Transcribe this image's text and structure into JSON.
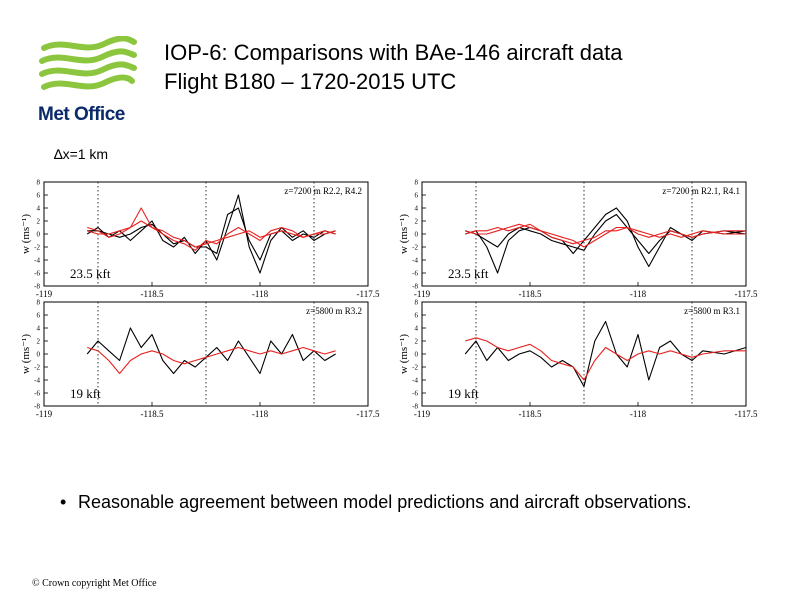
{
  "logo": {
    "text": "Met Office",
    "colors": {
      "green": "#8cc63f",
      "navy": "#0b2a6b"
    }
  },
  "header": {
    "title_line1": "IOP-6: Comparisons with BAe-146 aircraft data",
    "title_line2": "Flight B180 – 1720-2015 UTC"
  },
  "resolution_label": "∆x=1 km",
  "chart_data": [
    {
      "type": "line",
      "panel": "top-left",
      "annotation": "z=7200 m R2.2, R4.2",
      "level_label": "23.5 kft",
      "ylabel": "w (ms⁻¹)",
      "xlim": [
        -119,
        -117.5
      ],
      "ylim": [
        -8,
        8
      ],
      "xticks": [
        -119,
        -118.5,
        -118,
        -117.5
      ],
      "yticks": [
        -8,
        -6,
        -4,
        -2,
        0,
        2,
        4,
        6,
        8
      ],
      "dotted_verticals": [
        -118.75,
        -118.25,
        -117.75
      ],
      "series": [
        {
          "color": "#000000",
          "x": [
            -118.8,
            -118.75,
            -118.7,
            -118.65,
            -118.6,
            -118.55,
            -118.5,
            -118.45,
            -118.4,
            -118.35,
            -118.3,
            -118.25,
            -118.2,
            -118.15,
            -118.1,
            -118.05,
            -118.0,
            -117.95,
            -117.9,
            -117.85,
            -117.8,
            -117.75,
            -117.7,
            -117.65
          ],
          "y": [
            0,
            1,
            -0.5,
            0.5,
            -1,
            0.5,
            2,
            -1,
            -2,
            -0.5,
            -3,
            -1,
            -4,
            1,
            6,
            -2,
            -6,
            -1,
            1,
            -0.5,
            0.5,
            -1,
            0,
            0.5
          ]
        },
        {
          "color": "#000000",
          "x": [
            -118.8,
            -118.75,
            -118.7,
            -118.65,
            -118.6,
            -118.55,
            -118.5,
            -118.45,
            -118.4,
            -118.35,
            -118.3,
            -118.25,
            -118.2,
            -118.15,
            -118.1,
            -118.05,
            -118.0,
            -117.95,
            -117.9,
            -117.85,
            -117.8,
            -117.75,
            -117.7,
            -117.65
          ],
          "y": [
            0.5,
            0.5,
            0,
            -0.5,
            0,
            1,
            1.5,
            0,
            -1.5,
            -1,
            -2,
            -2,
            -3,
            3,
            4,
            -1,
            -4,
            0,
            0.5,
            -1,
            0,
            -0.5,
            0.5,
            0
          ]
        },
        {
          "color": "#e8211f",
          "x": [
            -118.8,
            -118.75,
            -118.7,
            -118.65,
            -118.6,
            -118.55,
            -118.5,
            -118.45,
            -118.4,
            -118.35,
            -118.3,
            -118.25,
            -118.2,
            -118.15,
            -118.1,
            -118.05,
            -118.0,
            -117.95,
            -117.9,
            -117.85,
            -117.8,
            -117.75,
            -117.7,
            -117.65
          ],
          "y": [
            1,
            0.5,
            -0.5,
            0,
            1,
            4,
            1,
            0,
            -1,
            -1.5,
            -2.5,
            -1,
            -1.5,
            0,
            1,
            0,
            -1,
            0.5,
            1,
            0.5,
            -0.5,
            0,
            0,
            0.5
          ]
        },
        {
          "color": "#e8211f",
          "x": [
            -118.8,
            -118.75,
            -118.7,
            -118.65,
            -118.6,
            -118.55,
            -118.5,
            -118.45,
            -118.4,
            -118.35,
            -118.3,
            -118.25,
            -118.2,
            -118.15,
            -118.1,
            -118.05,
            -118.0,
            -117.95,
            -117.9,
            -117.85,
            -117.8,
            -117.75,
            -117.7,
            -117.65
          ],
          "y": [
            0.5,
            0,
            0,
            0.5,
            1,
            2,
            1,
            0.5,
            -0.5,
            -1,
            -2,
            -1.5,
            -1,
            -0.5,
            0,
            0.5,
            -0.5,
            0,
            0.5,
            0,
            -0.5,
            0,
            0.5,
            0
          ]
        }
      ]
    },
    {
      "type": "line",
      "panel": "top-right",
      "annotation": "z=7200 m R2.1, R4.1",
      "level_label": "23.5 kft",
      "ylabel": "w (ms⁻¹)",
      "xlim": [
        -119,
        -117.5
      ],
      "ylim": [
        -8,
        8
      ],
      "xticks": [
        -119,
        -118.5,
        -118,
        -117.5
      ],
      "yticks": [
        -8,
        -6,
        -4,
        -2,
        0,
        2,
        4,
        6,
        8
      ],
      "dotted_verticals": [
        -118.75,
        -118.25,
        -117.75
      ],
      "series": [
        {
          "color": "#000000",
          "x": [
            -118.8,
            -118.75,
            -118.7,
            -118.65,
            -118.6,
            -118.55,
            -118.5,
            -118.45,
            -118.4,
            -118.35,
            -118.3,
            -118.25,
            -118.2,
            -118.15,
            -118.1,
            -118.05,
            -118.0,
            -117.95,
            -117.9,
            -117.85,
            -117.8,
            -117.75,
            -117.7,
            -117.6,
            -117.5
          ],
          "y": [
            0,
            0.5,
            -2,
            -6,
            -1,
            0.5,
            1,
            0.5,
            -0.5,
            -1,
            -3,
            -1,
            1,
            3,
            4,
            2,
            -2,
            -5,
            -2,
            1,
            0,
            -1,
            0.5,
            0,
            0.5
          ]
        },
        {
          "color": "#000000",
          "x": [
            -118.8,
            -118.75,
            -118.7,
            -118.65,
            -118.6,
            -118.55,
            -118.5,
            -118.45,
            -118.4,
            -118.35,
            -118.3,
            -118.25,
            -118.2,
            -118.15,
            -118.1,
            -118.05,
            -118.0,
            -117.95,
            -117.9,
            -117.85,
            -117.8,
            -117.75,
            -117.7,
            -117.6,
            -117.5
          ],
          "y": [
            0.5,
            0,
            -1,
            -2,
            0,
            1,
            0.5,
            0,
            -1,
            -1.5,
            -2,
            -2.5,
            0,
            2,
            3,
            1,
            -1,
            -3,
            -1,
            0.5,
            0,
            -0.5,
            0,
            0.5,
            0
          ]
        },
        {
          "color": "#e8211f",
          "x": [
            -118.8,
            -118.75,
            -118.7,
            -118.65,
            -118.6,
            -118.55,
            -118.5,
            -118.45,
            -118.4,
            -118.35,
            -118.3,
            -118.25,
            -118.2,
            -118.15,
            -118.1,
            -118.05,
            -118.0,
            -117.95,
            -117.9,
            -117.85,
            -117.8,
            -117.75,
            -117.7,
            -117.6,
            -117.5
          ],
          "y": [
            0.5,
            0,
            0,
            0.5,
            1,
            1.5,
            1,
            0.5,
            0,
            -0.5,
            -1,
            -2,
            -1,
            0,
            1,
            1,
            0.5,
            0,
            -0.5,
            0,
            -0.5,
            0,
            0.5,
            0,
            0
          ]
        },
        {
          "color": "#e8211f",
          "x": [
            -118.8,
            -118.75,
            -118.7,
            -118.65,
            -118.6,
            -118.55,
            -118.5,
            -118.45,
            -118.4,
            -118.35,
            -118.3,
            -118.25,
            -118.2,
            -118.15,
            -118.1,
            -118.05,
            -118.0,
            -117.95,
            -117.9,
            -117.85,
            -117.8,
            -117.75,
            -117.7,
            -117.6,
            -117.5
          ],
          "y": [
            0,
            0.5,
            0.5,
            1,
            0.5,
            1,
            1.5,
            0.5,
            -0.5,
            -1,
            -1.5,
            -1,
            -0.5,
            0.5,
            0.5,
            1,
            0,
            -0.5,
            0,
            0.5,
            0,
            -0.5,
            0,
            0.5,
            0.5
          ]
        }
      ]
    },
    {
      "type": "line",
      "panel": "bottom-left",
      "annotation": "z=5800 m R3.2",
      "level_label": "19 kft",
      "ylabel": "w (ms⁻¹)",
      "xlim": [
        -119,
        -117.5
      ],
      "ylim": [
        -8,
        8
      ],
      "xticks": [
        -119,
        -118.5,
        -118,
        -117.5
      ],
      "yticks": [
        -8,
        -6,
        -4,
        -2,
        0,
        2,
        4,
        6,
        8
      ],
      "dotted_verticals": [
        -118.75,
        -118.25,
        -117.75
      ],
      "series": [
        {
          "color": "#000000",
          "x": [
            -118.8,
            -118.75,
            -118.7,
            -118.65,
            -118.6,
            -118.55,
            -118.5,
            -118.45,
            -118.4,
            -118.35,
            -118.3,
            -118.25,
            -118.2,
            -118.15,
            -118.1,
            -118.05,
            -118.0,
            -117.95,
            -117.9,
            -117.85,
            -117.8,
            -117.75,
            -117.7,
            -117.65
          ],
          "y": [
            0,
            2,
            0.5,
            -1,
            4,
            1,
            3,
            -1,
            -3,
            -1,
            -2,
            -0.5,
            1,
            -1,
            2,
            -0.5,
            -3,
            2,
            0,
            3,
            -1,
            0.5,
            -1,
            0
          ]
        },
        {
          "color": "#e8211f",
          "x": [
            -118.8,
            -118.75,
            -118.7,
            -118.65,
            -118.6,
            -118.55,
            -118.5,
            -118.45,
            -118.4,
            -118.35,
            -118.3,
            -118.25,
            -118.2,
            -118.15,
            -118.1,
            -118.05,
            -118.0,
            -117.95,
            -117.9,
            -117.85,
            -117.8,
            -117.75,
            -117.7,
            -117.65
          ],
          "y": [
            1,
            0.5,
            -1,
            -3,
            -1,
            0,
            0.5,
            0,
            -1,
            -1.5,
            -1,
            -0.5,
            0,
            0.5,
            1,
            0.5,
            0,
            0.5,
            0,
            0.5,
            1,
            0.5,
            0,
            0.5
          ]
        }
      ]
    },
    {
      "type": "line",
      "panel": "bottom-right",
      "annotation": "z=5800 m R3.1",
      "level_label": "19 kft",
      "ylabel": "w (ms⁻¹)",
      "xlim": [
        -119,
        -117.5
      ],
      "ylim": [
        -8,
        8
      ],
      "xticks": [
        -119,
        -118.5,
        -118,
        -117.5
      ],
      "yticks": [
        -8,
        -6,
        -4,
        -2,
        0,
        2,
        4,
        6,
        8
      ],
      "dotted_verticals": [
        -118.75,
        -118.25,
        -117.75
      ],
      "series": [
        {
          "color": "#000000",
          "x": [
            -118.8,
            -118.75,
            -118.7,
            -118.65,
            -118.6,
            -118.55,
            -118.5,
            -118.45,
            -118.4,
            -118.35,
            -118.3,
            -118.25,
            -118.2,
            -118.15,
            -118.1,
            -118.05,
            -118.0,
            -117.95,
            -117.9,
            -117.85,
            -117.8,
            -117.75,
            -117.7,
            -117.6,
            -117.5
          ],
          "y": [
            0,
            2,
            -1,
            1,
            -1,
            0,
            0.5,
            -0.5,
            -2,
            -1,
            -2,
            -5,
            2,
            5,
            0,
            -2,
            3,
            -4,
            1,
            2,
            0,
            -1,
            0.5,
            0,
            1
          ]
        },
        {
          "color": "#e8211f",
          "x": [
            -118.8,
            -118.75,
            -118.7,
            -118.65,
            -118.6,
            -118.55,
            -118.5,
            -118.45,
            -118.4,
            -118.35,
            -118.3,
            -118.25,
            -118.2,
            -118.15,
            -118.1,
            -118.05,
            -118.0,
            -117.95,
            -117.9,
            -117.85,
            -117.8,
            -117.75,
            -117.7,
            -117.6,
            -117.5
          ],
          "y": [
            2,
            2.5,
            2,
            1,
            0.5,
            1,
            1.5,
            0.5,
            -1,
            -1.5,
            -2,
            -4,
            -1,
            1,
            0,
            -1,
            0,
            0.5,
            0,
            0.5,
            0,
            -0.5,
            0,
            0.5,
            0.5
          ]
        }
      ]
    }
  ],
  "bullet": {
    "marker": "•",
    "text": "Reasonable agreement between model predictions and aircraft observations."
  },
  "footer": {
    "copyright": "© Crown copyright   Met Office"
  }
}
